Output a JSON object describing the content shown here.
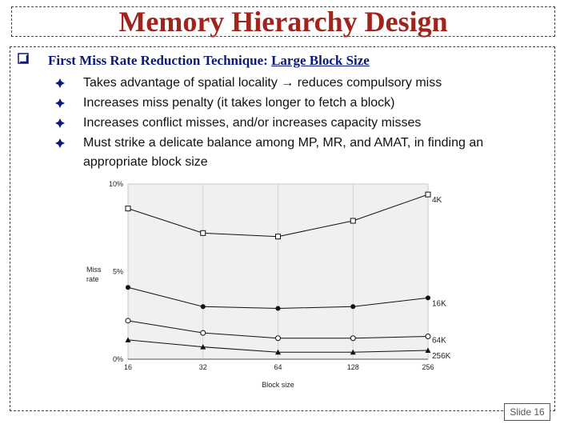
{
  "title": "Memory Hierarchy Design",
  "heading": {
    "main": "First Miss Rate Reduction Technique:",
    "underlined": "Large Block Size"
  },
  "bullets": [
    "Takes advantage of spatial locality → reduces compulsory miss",
    "Increases miss penalty (it takes longer to fetch a block)",
    "Increases conflict misses, and/or increases capacity misses",
    "Must strike a delicate balance among MP, MR, and AMAT, in finding an appropriate block size"
  ],
  "chart_data": {
    "type": "line",
    "x": [
      "16",
      "32",
      "64",
      "128",
      "256"
    ],
    "xlabel": "Block size",
    "ylabel": "Miss rate",
    "ylim": [
      0,
      10
    ],
    "yticks": [
      "0%",
      "5%",
      "10%"
    ],
    "grid": "vertical",
    "series": [
      {
        "name": "4K",
        "marker": "open-square",
        "values": [
          8.6,
          7.2,
          7.0,
          7.9,
          9.4
        ]
      },
      {
        "name": "16K",
        "marker": "filled-circle",
        "values": [
          4.1,
          3.0,
          2.9,
          3.0,
          3.5
        ]
      },
      {
        "name": "64K",
        "marker": "open-circle",
        "values": [
          2.2,
          1.5,
          1.2,
          1.2,
          1.3
        ]
      },
      {
        "name": "256K",
        "marker": "filled-triangle",
        "values": [
          1.1,
          0.7,
          0.4,
          0.4,
          0.5
        ]
      }
    ]
  },
  "slide_number": "Slide 16",
  "colors": {
    "title": "#a0231c",
    "heading": "#0b1a7a",
    "plot_bg": "#f0f0f0"
  }
}
